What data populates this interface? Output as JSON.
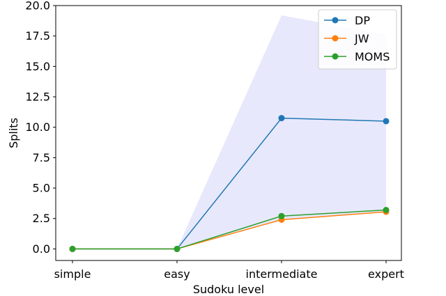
{
  "chart_data": {
    "type": "line",
    "categories": [
      "simple",
      "easy",
      "intermediate",
      "expert"
    ],
    "xlabel": "Sudoku level",
    "ylabel": "Splits",
    "ylim": [
      -0.95,
      20.0
    ],
    "yticks": [
      0.0,
      2.5,
      5.0,
      7.5,
      10.0,
      12.5,
      15.0,
      17.5,
      20.0
    ],
    "ytick_labels": [
      "0.0",
      "2.5",
      "5.0",
      "7.5",
      "10.0",
      "12.5",
      "15.0",
      "17.5",
      "20.0"
    ],
    "grid": false,
    "legend_position": "top-right",
    "series": [
      {
        "name": "DP",
        "color": "#1f77b4",
        "values": [
          0,
          0,
          10.75,
          10.5
        ]
      },
      {
        "name": "JW",
        "color": "#ff7f0e",
        "values": [
          0,
          0,
          2.4,
          3.05
        ]
      },
      {
        "name": "MOMS",
        "color": "#2ca02c",
        "values": [
          0,
          0,
          2.7,
          3.2
        ]
      }
    ],
    "band": {
      "color": "#e8e8fc",
      "upper": [
        0,
        0,
        19.2,
        17.6
      ],
      "lower": [
        0,
        0,
        2.4,
        3.05
      ]
    }
  }
}
